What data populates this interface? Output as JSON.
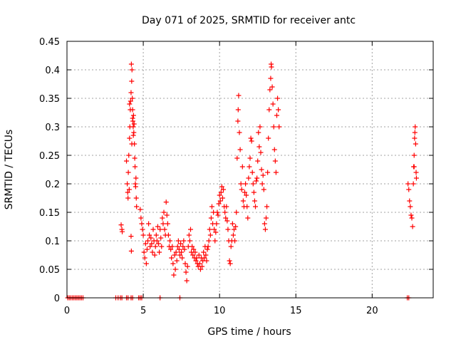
{
  "chart_data": {
    "type": "scatter",
    "title": "Day 071 of 2025, SRMTID for receiver antc",
    "xlabel": "GPS time / hours",
    "ylabel": "SRMTID / TECUs",
    "xlim": [
      0,
      24
    ],
    "ylim": [
      0,
      0.45
    ],
    "xticks": [
      0,
      5,
      10,
      15,
      20
    ],
    "xtick_labels": [
      "0",
      "5",
      "10",
      "15",
      "20"
    ],
    "yticks": [
      0,
      0.05,
      0.1,
      0.15,
      0.2,
      0.25,
      0.3,
      0.35,
      0.4,
      0.45
    ],
    "ytick_labels": [
      "0",
      "0.05",
      "0.1",
      "0.15",
      "0.2",
      "0.25",
      "0.3",
      "0.35",
      "0.4",
      "0.45"
    ],
    "grid": true,
    "marker": "plus",
    "color": "#ff0000",
    "series": [
      {
        "name": "SRMTID",
        "points": [
          [
            0.05,
            0
          ],
          [
            0.15,
            0
          ],
          [
            0.25,
            0
          ],
          [
            0.35,
            0
          ],
          [
            0.45,
            0
          ],
          [
            0.55,
            0
          ],
          [
            0.65,
            0
          ],
          [
            0.75,
            0
          ],
          [
            0.85,
            0
          ],
          [
            0.95,
            0
          ],
          [
            1.05,
            0
          ],
          [
            3.2,
            0
          ],
          [
            3.35,
            0
          ],
          [
            3.5,
            0
          ],
          [
            3.6,
            0
          ],
          [
            3.9,
            0
          ],
          [
            4.0,
            0
          ],
          [
            4.2,
            0
          ],
          [
            4.3,
            0
          ],
          [
            4.7,
            0
          ],
          [
            4.8,
            0
          ],
          [
            4.9,
            0
          ],
          [
            6.1,
            0
          ],
          [
            7.4,
            0
          ],
          [
            22.3,
            0
          ],
          [
            22.4,
            0
          ],
          [
            3.55,
            0.128
          ],
          [
            3.6,
            0.12
          ],
          [
            3.62,
            0.116
          ],
          [
            3.9,
            0.24
          ],
          [
            3.95,
            0.2
          ],
          [
            3.98,
            0.185
          ],
          [
            4.0,
            0.175
          ],
          [
            4.02,
            0.22
          ],
          [
            4.05,
            0.25
          ],
          [
            4.08,
            0.19
          ],
          [
            4.1,
            0.28
          ],
          [
            4.12,
            0.3
          ],
          [
            4.15,
            0.33
          ],
          [
            4.17,
            0.345
          ],
          [
            4.2,
            0.36
          ],
          [
            4.22,
            0.41
          ],
          [
            4.24,
            0.38
          ],
          [
            4.26,
            0.4
          ],
          [
            4.28,
            0.35
          ],
          [
            4.3,
            0.33
          ],
          [
            4.32,
            0.31
          ],
          [
            4.34,
            0.3
          ],
          [
            4.36,
            0.32
          ],
          [
            4.38,
            0.29
          ],
          [
            4.4,
            0.305
          ],
          [
            4.42,
            0.27
          ],
          [
            4.44,
            0.245
          ],
          [
            4.46,
            0.23
          ],
          [
            4.48,
            0.2
          ],
          [
            4.5,
            0.195
          ],
          [
            4.52,
            0.21
          ],
          [
            4.54,
            0.175
          ],
          [
            4.56,
            0.16
          ],
          [
            4.2,
            0.108
          ],
          [
            4.22,
            0.082
          ],
          [
            4.25,
            0.27
          ],
          [
            4.35,
            0.285
          ],
          [
            4.1,
            0.34
          ],
          [
            4.3,
            0.315
          ],
          [
            4.8,
            0.155
          ],
          [
            4.85,
            0.14
          ],
          [
            4.9,
            0.13
          ],
          [
            4.95,
            0.12
          ],
          [
            5.0,
            0.11
          ],
          [
            5.05,
            0.08
          ],
          [
            5.1,
            0.07
          ],
          [
            5.15,
            0.095
          ],
          [
            5.2,
            0.06
          ],
          [
            5.25,
            0.085
          ],
          [
            5.3,
            0.1
          ],
          [
            5.35,
            0.13
          ],
          [
            5.4,
            0.11
          ],
          [
            5.45,
            0.09
          ],
          [
            5.5,
            0.105
          ],
          [
            5.55,
            0.095
          ],
          [
            5.6,
            0.08
          ],
          [
            5.65,
            0.12
          ],
          [
            5.7,
            0.1
          ],
          [
            5.75,
            0.075
          ],
          [
            5.8,
            0.09
          ],
          [
            5.85,
            0.11
          ],
          [
            5.9,
            0.1
          ],
          [
            5.95,
            0.125
          ],
          [
            6.0,
            0.095
          ],
          [
            6.05,
            0.08
          ],
          [
            6.1,
            0.12
          ],
          [
            6.15,
            0.105
          ],
          [
            6.2,
            0.09
          ],
          [
            6.25,
            0.14
          ],
          [
            6.3,
            0.13
          ],
          [
            6.35,
            0.15
          ],
          [
            6.4,
            0.12
          ],
          [
            6.45,
            0.11
          ],
          [
            6.5,
            0.168
          ],
          [
            6.55,
            0.145
          ],
          [
            6.6,
            0.13
          ],
          [
            6.65,
            0.11
          ],
          [
            6.7,
            0.09
          ],
          [
            6.75,
            0.1
          ],
          [
            6.8,
            0.085
          ],
          [
            6.85,
            0.07
          ],
          [
            6.9,
            0.09
          ],
          [
            6.95,
            0.06
          ],
          [
            7.0,
            0.04
          ],
          [
            7.05,
            0.075
          ],
          [
            7.1,
            0.05
          ],
          [
            7.15,
            0.08
          ],
          [
            7.2,
            0.065
          ],
          [
            7.25,
            0.09
          ],
          [
            7.3,
            0.1
          ],
          [
            7.35,
            0.085
          ],
          [
            7.4,
            0.075
          ],
          [
            7.45,
            0.095
          ],
          [
            7.5,
            0.08
          ],
          [
            7.55,
            0.07
          ],
          [
            7.6,
            0.09
          ],
          [
            7.65,
            0.1
          ],
          [
            7.7,
            0.085
          ],
          [
            7.75,
            0.06
          ],
          [
            7.8,
            0.045
          ],
          [
            7.85,
            0.03
          ],
          [
            7.9,
            0.055
          ],
          [
            7.95,
            0.09
          ],
          [
            8.0,
            0.11
          ],
          [
            8.05,
            0.1
          ],
          [
            8.1,
            0.12
          ],
          [
            8.15,
            0.08
          ],
          [
            8.2,
            0.09
          ],
          [
            8.25,
            0.075
          ],
          [
            8.3,
            0.085
          ],
          [
            8.35,
            0.07
          ],
          [
            8.4,
            0.08
          ],
          [
            8.45,
            0.065
          ],
          [
            8.5,
            0.07
          ],
          [
            8.55,
            0.06
          ],
          [
            8.6,
            0.055
          ],
          [
            8.65,
            0.075
          ],
          [
            8.7,
            0.06
          ],
          [
            8.75,
            0.05
          ],
          [
            8.8,
            0.07
          ],
          [
            8.85,
            0.055
          ],
          [
            8.9,
            0.065
          ],
          [
            8.95,
            0.08
          ],
          [
            9.0,
            0.07
          ],
          [
            9.05,
            0.09
          ],
          [
            9.1,
            0.075
          ],
          [
            9.15,
            0.065
          ],
          [
            9.2,
            0.085
          ],
          [
            9.25,
            0.09
          ],
          [
            9.3,
            0.1
          ],
          [
            9.35,
            0.12
          ],
          [
            9.4,
            0.11
          ],
          [
            9.45,
            0.14
          ],
          [
            9.5,
            0.16
          ],
          [
            9.55,
            0.13
          ],
          [
            9.6,
            0.15
          ],
          [
            9.65,
            0.12
          ],
          [
            9.7,
            0.1
          ],
          [
            9.75,
            0.115
          ],
          [
            9.8,
            0.13
          ],
          [
            9.85,
            0.15
          ],
          [
            9.9,
            0.145
          ],
          [
            9.95,
            0.165
          ],
          [
            10.0,
            0.18
          ],
          [
            10.05,
            0.17
          ],
          [
            10.1,
            0.185
          ],
          [
            10.15,
            0.195
          ],
          [
            10.2,
            0.175
          ],
          [
            10.25,
            0.19
          ],
          [
            10.3,
            0.16
          ],
          [
            10.35,
            0.15
          ],
          [
            10.4,
            0.14
          ],
          [
            10.45,
            0.16
          ],
          [
            10.5,
            0.135
          ],
          [
            10.55,
            0.12
          ],
          [
            10.6,
            0.1
          ],
          [
            10.65,
            0.065
          ],
          [
            10.7,
            0.06
          ],
          [
            10.75,
            0.09
          ],
          [
            10.8,
            0.1
          ],
          [
            10.85,
            0.13
          ],
          [
            10.9,
            0.11
          ],
          [
            10.95,
            0.12
          ],
          [
            11.0,
            0.1
          ],
          [
            11.05,
            0.125
          ],
          [
            11.1,
            0.15
          ],
          [
            11.15,
            0.245
          ],
          [
            11.2,
            0.31
          ],
          [
            11.22,
            0.33
          ],
          [
            11.25,
            0.355
          ],
          [
            11.3,
            0.29
          ],
          [
            11.35,
            0.26
          ],
          [
            11.4,
            0.2
          ],
          [
            11.45,
            0.19
          ],
          [
            11.5,
            0.23
          ],
          [
            11.55,
            0.17
          ],
          [
            11.6,
            0.16
          ],
          [
            11.65,
            0.185
          ],
          [
            11.7,
            0.2
          ],
          [
            11.75,
            0.18
          ],
          [
            11.8,
            0.16
          ],
          [
            11.85,
            0.14
          ],
          [
            11.9,
            0.21
          ],
          [
            11.95,
            0.23
          ],
          [
            12.0,
            0.245
          ],
          [
            12.05,
            0.28
          ],
          [
            12.1,
            0.275
          ],
          [
            12.15,
            0.22
          ],
          [
            12.2,
            0.2
          ],
          [
            12.25,
            0.185
          ],
          [
            12.3,
            0.17
          ],
          [
            12.35,
            0.16
          ],
          [
            12.4,
            0.205
          ],
          [
            12.45,
            0.21
          ],
          [
            12.5,
            0.24
          ],
          [
            12.55,
            0.29
          ],
          [
            12.6,
            0.265
          ],
          [
            12.65,
            0.3
          ],
          [
            12.7,
            0.255
          ],
          [
            12.75,
            0.225
          ],
          [
            12.8,
            0.2
          ],
          [
            12.85,
            0.215
          ],
          [
            12.9,
            0.19
          ],
          [
            12.95,
            0.13
          ],
          [
            13.0,
            0.12
          ],
          [
            13.05,
            0.14
          ],
          [
            13.1,
            0.16
          ],
          [
            13.15,
            0.22
          ],
          [
            13.2,
            0.28
          ],
          [
            13.25,
            0.33
          ],
          [
            13.3,
            0.365
          ],
          [
            13.35,
            0.385
          ],
          [
            13.38,
            0.41
          ],
          [
            13.4,
            0.405
          ],
          [
            13.45,
            0.37
          ],
          [
            13.5,
            0.34
          ],
          [
            13.55,
            0.3
          ],
          [
            13.6,
            0.26
          ],
          [
            13.65,
            0.24
          ],
          [
            13.7,
            0.22
          ],
          [
            13.75,
            0.32
          ],
          [
            13.8,
            0.35
          ],
          [
            13.85,
            0.33
          ],
          [
            13.9,
            0.3
          ],
          [
            22.35,
            0.2
          ],
          [
            22.4,
            0.19
          ],
          [
            22.45,
            0.17
          ],
          [
            22.5,
            0.16
          ],
          [
            22.55,
            0.145
          ],
          [
            22.6,
            0.14
          ],
          [
            22.65,
            0.125
          ],
          [
            22.7,
            0.2
          ],
          [
            22.72,
            0.23
          ],
          [
            22.75,
            0.25
          ],
          [
            22.78,
            0.28
          ],
          [
            22.8,
            0.29
          ],
          [
            22.82,
            0.3
          ],
          [
            22.85,
            0.27
          ],
          [
            22.88,
            0.22
          ],
          [
            22.9,
            0.21
          ],
          [
            22.75,
            0.23
          ]
        ]
      }
    ]
  }
}
